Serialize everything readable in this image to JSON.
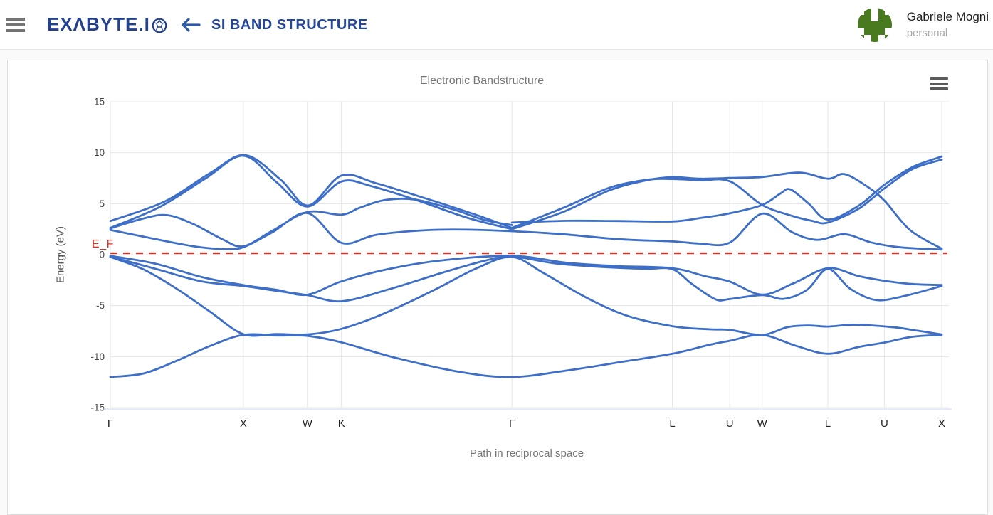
{
  "header": {
    "logo_text": "EXΛBYTE.I",
    "page_title": "SI BAND STRUCTURE",
    "icons": {
      "menu": "hamburger-menu",
      "back": "left-arrow",
      "logo_ball": "molecule-sphere",
      "chart_menu": "hamburger-menu"
    },
    "user": {
      "name": "Gabriele Mogni",
      "account_type": "personal",
      "avatar_color": "#4a7a20",
      "avatar_pattern": [
        "01010",
        "11011",
        "11111",
        "01110",
        "10101"
      ]
    },
    "colors": {
      "brand_navy": "#24418e",
      "title_blue": "#24469b",
      "arrow_blue": "#2d5aa8"
    }
  },
  "chart": {
    "title": "Electronic Bandstructure",
    "xlabel": "Path in reciprocal space",
    "ylabel": "Energy (eV)",
    "fermi_label": "E_F"
  },
  "chart_data": {
    "type": "line",
    "title": "Electronic Bandstructure",
    "xlabel": "Path in reciprocal space",
    "ylabel": "Energy (eV)",
    "ylim": [
      -15,
      15
    ],
    "yticks": [
      15,
      10,
      5,
      0,
      -5,
      -10,
      -15
    ],
    "grid": true,
    "band_color": "#3d6ec8",
    "fermi_color": "#e82c21",
    "fermi_energy": 0.14,
    "x_symmetry_points": [
      {
        "label": "Γ",
        "x": 0
      },
      {
        "label": "X",
        "x": 0.16
      },
      {
        "label": "W",
        "x": 0.237
      },
      {
        "label": "K",
        "x": 0.278
      },
      {
        "label": "Γ",
        "x": 0.483
      },
      {
        "label": "L",
        "x": 0.676
      },
      {
        "label": "U",
        "x": 0.745
      },
      {
        "label": "W",
        "x": 0.784
      },
      {
        "label": "L",
        "x": 0.863
      },
      {
        "label": "U",
        "x": 0.931
      },
      {
        "label": "X",
        "x": 1
      }
    ],
    "bands": [
      [
        [
          0,
          -12.0
        ],
        [
          0.04,
          -11.65
        ],
        [
          0.08,
          -10.4
        ],
        [
          0.12,
          -8.95
        ],
        [
          0.16,
          -7.87
        ],
        [
          0.2,
          -7.93
        ],
        [
          0.237,
          -7.97
        ],
        [
          0.278,
          -8.6
        ],
        [
          0.34,
          -10.05
        ],
        [
          0.42,
          -11.5
        ],
        [
          0.483,
          -12.0
        ],
        [
          0.55,
          -11.35
        ],
        [
          0.62,
          -10.45
        ],
        [
          0.676,
          -9.72
        ],
        [
          0.72,
          -8.85
        ],
        [
          0.745,
          -8.45
        ],
        [
          0.784,
          -7.88
        ],
        [
          0.825,
          -8.95
        ],
        [
          0.863,
          -9.72
        ],
        [
          0.9,
          -9.05
        ],
        [
          0.931,
          -8.62
        ],
        [
          0.965,
          -8.05
        ],
        [
          1,
          -7.87
        ]
      ],
      [
        [
          0,
          -0.22
        ],
        [
          0.04,
          -1.45
        ],
        [
          0.08,
          -3.35
        ],
        [
          0.12,
          -5.6
        ],
        [
          0.16,
          -7.8
        ],
        [
          0.2,
          -7.79
        ],
        [
          0.237,
          -7.83
        ],
        [
          0.278,
          -7.28
        ],
        [
          0.33,
          -5.75
        ],
        [
          0.39,
          -3.45
        ],
        [
          0.44,
          -1.35
        ],
        [
          0.483,
          -0.22
        ],
        [
          0.52,
          -1.75
        ],
        [
          0.57,
          -4.1
        ],
        [
          0.62,
          -5.95
        ],
        [
          0.676,
          -7.02
        ],
        [
          0.72,
          -7.32
        ],
        [
          0.745,
          -7.38
        ],
        [
          0.784,
          -7.87
        ],
        [
          0.815,
          -7.1
        ],
        [
          0.84,
          -6.95
        ],
        [
          0.863,
          -7.05
        ],
        [
          0.895,
          -6.88
        ],
        [
          0.94,
          -7.1
        ],
        [
          0.97,
          -7.45
        ],
        [
          1,
          -7.83
        ]
      ],
      [
        [
          0,
          -0.18
        ],
        [
          0.055,
          -1.4
        ],
        [
          0.11,
          -2.62
        ],
        [
          0.16,
          -3.07
        ],
        [
          0.2,
          -3.55
        ],
        [
          0.237,
          -3.97
        ],
        [
          0.278,
          -4.57
        ],
        [
          0.335,
          -3.4
        ],
        [
          0.4,
          -1.75
        ],
        [
          0.45,
          -0.6
        ],
        [
          0.483,
          -0.18
        ],
        [
          0.535,
          -0.85
        ],
        [
          0.6,
          -1.25
        ],
        [
          0.645,
          -1.38
        ],
        [
          0.676,
          -1.42
        ],
        [
          0.7,
          -2.9
        ],
        [
          0.728,
          -4.38
        ],
        [
          0.745,
          -4.35
        ],
        [
          0.784,
          -3.96
        ],
        [
          0.81,
          -4.33
        ],
        [
          0.838,
          -3.45
        ],
        [
          0.863,
          -1.4
        ],
        [
          0.89,
          -3.35
        ],
        [
          0.921,
          -4.45
        ],
        [
          0.955,
          -4.05
        ],
        [
          1,
          -3.07
        ]
      ],
      [
        [
          0,
          -0.12
        ],
        [
          0.055,
          -0.9
        ],
        [
          0.11,
          -2.2
        ],
        [
          0.16,
          -2.98
        ],
        [
          0.2,
          -3.45
        ],
        [
          0.237,
          -3.93
        ],
        [
          0.278,
          -2.62
        ],
        [
          0.335,
          -1.4
        ],
        [
          0.4,
          -0.55
        ],
        [
          0.483,
          -0.12
        ],
        [
          0.55,
          -0.8
        ],
        [
          0.61,
          -1.12
        ],
        [
          0.676,
          -1.33
        ],
        [
          0.715,
          -2.1
        ],
        [
          0.745,
          -2.64
        ],
        [
          0.784,
          -3.92
        ],
        [
          0.822,
          -2.8
        ],
        [
          0.863,
          -1.33
        ],
        [
          0.9,
          -2.1
        ],
        [
          0.931,
          -2.56
        ],
        [
          0.965,
          -2.88
        ],
        [
          1,
          -2.98
        ]
      ],
      [
        [
          0,
          2.42
        ],
        [
          0.05,
          1.6
        ],
        [
          0.1,
          0.82
        ],
        [
          0.137,
          0.55
        ],
        [
          0.16,
          0.73
        ],
        [
          0.195,
          2.2
        ],
        [
          0.237,
          4.08
        ],
        [
          0.278,
          1.16
        ],
        [
          0.32,
          1.95
        ],
        [
          0.38,
          2.4
        ],
        [
          0.43,
          2.45
        ],
        [
          0.483,
          2.3
        ],
        [
          0.545,
          2.0
        ],
        [
          0.61,
          1.52
        ],
        [
          0.676,
          1.3
        ],
        [
          0.71,
          1.08
        ],
        [
          0.745,
          1.18
        ],
        [
          0.784,
          4.02
        ],
        [
          0.82,
          2.2
        ],
        [
          0.85,
          1.45
        ],
        [
          0.883,
          2.0
        ],
        [
          0.915,
          1.2
        ],
        [
          0.95,
          0.72
        ],
        [
          1,
          0.5
        ]
      ],
      [
        [
          0,
          2.58
        ],
        [
          0.04,
          3.55
        ],
        [
          0.068,
          3.88
        ],
        [
          0.1,
          3.0
        ],
        [
          0.135,
          1.5
        ],
        [
          0.16,
          0.82
        ],
        [
          0.195,
          2.35
        ],
        [
          0.237,
          4.18
        ],
        [
          0.278,
          3.92
        ],
        [
          0.3,
          4.6
        ],
        [
          0.33,
          5.35
        ],
        [
          0.365,
          5.42
        ],
        [
          0.41,
          4.5
        ],
        [
          0.45,
          3.4
        ],
        [
          0.483,
          2.9
        ]
      ],
      [
        [
          0,
          2.62
        ],
        [
          0.06,
          4.7
        ],
        [
          0.115,
          7.5
        ],
        [
          0.16,
          9.7
        ],
        [
          0.2,
          7.1
        ],
        [
          0.237,
          4.72
        ],
        [
          0.278,
          7.18
        ],
        [
          0.315,
          6.7
        ],
        [
          0.37,
          5.3
        ],
        [
          0.43,
          3.6
        ],
        [
          0.483,
          2.5
        ]
      ],
      [
        [
          0,
          3.3
        ],
        [
          0.065,
          5.2
        ],
        [
          0.12,
          8.0
        ],
        [
          0.162,
          9.76
        ],
        [
          0.205,
          7.35
        ],
        [
          0.238,
          4.82
        ],
        [
          0.278,
          7.76
        ],
        [
          0.32,
          7.0
        ],
        [
          0.38,
          5.5
        ],
        [
          0.44,
          3.9
        ],
        [
          0.483,
          2.62
        ]
      ],
      [
        [
          0.483,
          2.5
        ],
        [
          0.545,
          4.2
        ],
        [
          0.6,
          6.3
        ],
        [
          0.645,
          7.3
        ],
        [
          0.676,
          7.6
        ],
        [
          0.71,
          7.45
        ],
        [
          0.745,
          7.52
        ],
        [
          0.784,
          7.62
        ],
        [
          0.829,
          8.05
        ],
        [
          0.863,
          7.45
        ],
        [
          0.883,
          7.9
        ],
        [
          0.91,
          6.7
        ],
        [
          0.931,
          5.3
        ],
        [
          0.962,
          2.4
        ],
        [
          1,
          0.58
        ]
      ],
      [
        [
          0.483,
          2.62
        ],
        [
          0.545,
          4.6
        ],
        [
          0.6,
          6.55
        ],
        [
          0.645,
          7.35
        ],
        [
          0.676,
          7.42
        ],
        [
          0.71,
          7.3
        ],
        [
          0.745,
          7.2
        ],
        [
          0.784,
          4.87
        ],
        [
          0.82,
          3.8
        ],
        [
          0.845,
          3.3
        ],
        [
          0.863,
          3.15
        ],
        [
          0.9,
          4.5
        ],
        [
          0.931,
          6.5
        ],
        [
          0.965,
          8.4
        ],
        [
          1,
          9.32
        ]
      ],
      [
        [
          0.483,
          3.15
        ],
        [
          0.55,
          3.32
        ],
        [
          0.61,
          3.3
        ],
        [
          0.676,
          3.26
        ],
        [
          0.71,
          3.6
        ],
        [
          0.745,
          4.05
        ],
        [
          0.784,
          4.87
        ],
        [
          0.806,
          6.0
        ],
        [
          0.818,
          6.4
        ],
        [
          0.84,
          5.0
        ],
        [
          0.863,
          3.45
        ],
        [
          0.9,
          4.8
        ],
        [
          0.931,
          6.85
        ],
        [
          0.965,
          8.6
        ],
        [
          1,
          9.62
        ]
      ]
    ]
  }
}
